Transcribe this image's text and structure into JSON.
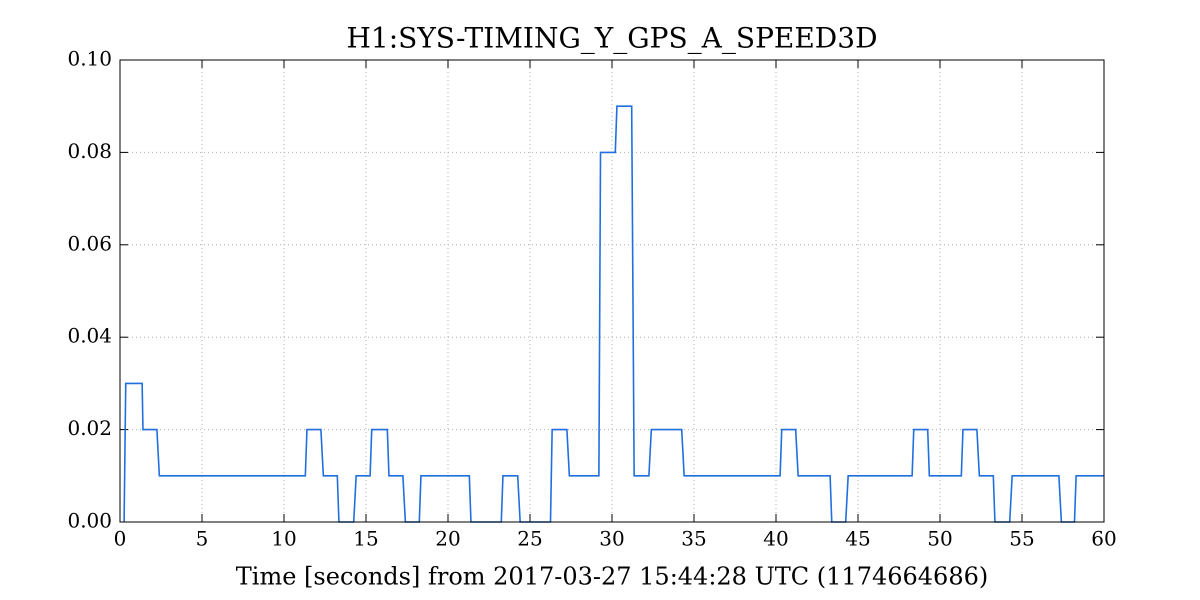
{
  "chart_data": {
    "type": "line",
    "title": "H1:SYS-TIMING_Y_GPS_A_SPEED3D",
    "x_label": "Time [seconds] from 2017-03-27 15:44:28 UTC (1174664686)",
    "xlim": [
      0,
      60
    ],
    "xticks": [
      0,
      5,
      10,
      15,
      20,
      25,
      30,
      35,
      40,
      45,
      50,
      55,
      60
    ],
    "ylim": [
      0,
      0.1
    ],
    "yticks": [
      {
        "value": 0,
        "label": "0.00"
      },
      {
        "value": 0.02,
        "label": "0.02"
      },
      {
        "value": 0.04,
        "label": "0.04"
      },
      {
        "value": 0.06,
        "label": "0.06"
      },
      {
        "value": 0.08,
        "label": "0.08"
      },
      {
        "value": 0.1,
        "label": "0.10"
      }
    ],
    "grid": true,
    "series": [
      {
        "color": "#1f6fe0",
        "x": [
          0.25,
          0.35,
          1.35,
          1.4,
          2.25,
          2.4,
          11.3,
          11.4,
          12.25,
          12.4,
          13.25,
          13.35,
          14.25,
          14.4,
          15.25,
          15.35,
          16.3,
          16.4,
          17.25,
          17.4,
          18.25,
          18.35,
          21.3,
          21.4,
          23.25,
          23.35,
          24.25,
          24.4,
          26.25,
          26.35,
          27.25,
          27.4,
          29.2,
          29.3,
          30.2,
          30.3,
          31.2,
          31.35,
          32.25,
          32.4,
          34.25,
          34.4,
          40.25,
          40.35,
          41.2,
          41.35,
          43.3,
          43.4,
          44.25,
          44.4,
          48.3,
          48.4,
          49.25,
          49.35,
          51.3,
          51.4,
          52.25,
          52.4,
          53.25,
          53.35,
          54.25,
          54.4,
          57.25,
          57.4,
          58.2,
          58.3,
          60
        ],
        "values": [
          0,
          0.03,
          0.03,
          0.02,
          0.02,
          0.01,
          0.01,
          0.02,
          0.02,
          0.01,
          0.01,
          0,
          0,
          0.01,
          0.01,
          0.02,
          0.02,
          0.01,
          0.01,
          0,
          0,
          0.01,
          0.01,
          0,
          0,
          0.01,
          0.01,
          0,
          0,
          0.02,
          0.02,
          0.01,
          0.01,
          0.08,
          0.08,
          0.09,
          0.09,
          0.01,
          0.01,
          0.02,
          0.02,
          0.01,
          0.01,
          0.02,
          0.02,
          0.01,
          0.01,
          0,
          0,
          0.01,
          0.01,
          0.02,
          0.02,
          0.01,
          0.01,
          0.02,
          0.02,
          0.01,
          0.01,
          0,
          0,
          0.01,
          0.01,
          0,
          0,
          0.01,
          0.01
        ]
      }
    ]
  }
}
